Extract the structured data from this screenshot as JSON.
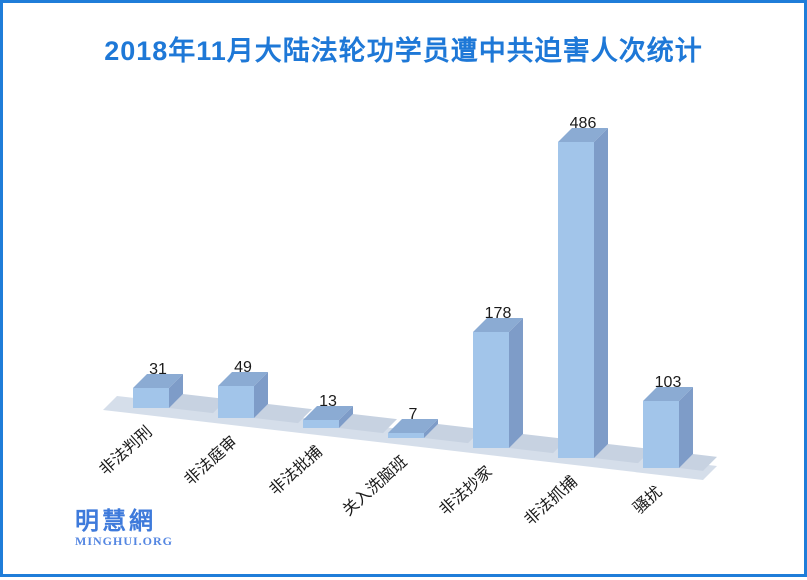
{
  "page": {
    "background": "#FFFFFF",
    "border_color": "#1F7DD9"
  },
  "title": {
    "text": "2018年11月大陆法轮功学员遭中共迫害人次统计",
    "color": "#1E78D7"
  },
  "chart_data": {
    "type": "bar",
    "style": "3d",
    "title": "2018年11月大陆法轮功学员遭中共迫害人次统计",
    "categories": [
      "非法判刑",
      "非法庭审",
      "非法批捕",
      "关入洗脑班",
      "非法抄家",
      "非法抓捕",
      "骚扰"
    ],
    "values": [
      31,
      49,
      13,
      7,
      178,
      486,
      103
    ],
    "xlabel": "",
    "ylabel": "",
    "data_labels": true,
    "legend": "none",
    "gridlines": false,
    "axis_lines": false,
    "colors": {
      "bar_front": "#A2C5EA",
      "bar_top": "#8BABD3",
      "bar_side": "#7E9CC8",
      "floor": "#D5DEEA",
      "floor_shadow": "#C7D2E1",
      "label_text": "#1A1A1A"
    }
  },
  "logo": {
    "chinese": "明慧網",
    "latin": "MINGHUI.ORG",
    "color": "#3E7ADB"
  }
}
